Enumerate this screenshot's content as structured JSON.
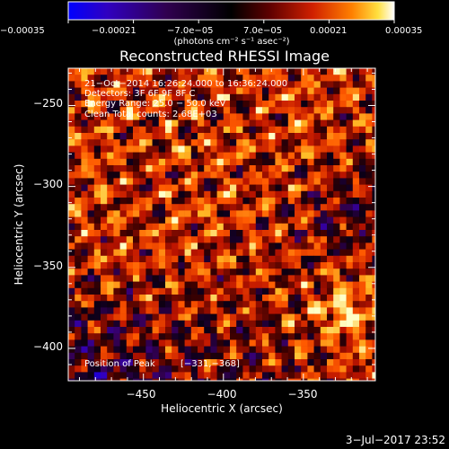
{
  "chart_data": {
    "type": "heatmap",
    "title": "Reconstructed RHESSI Image",
    "xlabel": "Heliocentric X (arcsec)",
    "ylabel": "Heliocentric Y (arcsec)",
    "xlim": [
      -497,
      -305
    ],
    "ylim": [
      -420,
      -227
    ],
    "x_ticks": [
      {
        "value": -450,
        "label": "−450"
      },
      {
        "value": -400,
        "label": "−400"
      },
      {
        "value": -350,
        "label": "−350"
      }
    ],
    "y_ticks": [
      {
        "value": -250,
        "label": "−250"
      },
      {
        "value": -300,
        "label": "−300"
      },
      {
        "value": -350,
        "label": "−350"
      },
      {
        "value": -400,
        "label": "−400"
      }
    ],
    "colorbar": {
      "range": [
        -0.00035,
        0.00035
      ],
      "tick_labels": [
        "−0.00035",
        "−0.00021",
        "−7.0e−05",
        "7.0e−05",
        "0.00021",
        "0.00035"
      ],
      "tick_values": [
        -0.00035,
        -0.00021,
        -7e-05,
        7e-05,
        0.00021,
        0.00035
      ],
      "unit_label": "(photons cm⁻² s⁻¹ asec⁻²)",
      "colors": [
        "#0000ff",
        "#4000a0",
        "#200030",
        "#000000",
        "#500000",
        "#b01000",
        "#ff5000",
        "#ffb020",
        "#ffff80",
        "#ffffff"
      ]
    },
    "annotations": [
      "21−Oct−2014 16:26:24.000 to 16:36:24.000",
      "Detectors: 3F 6F 9F 8F  C",
      "Energy Range: 25.0 − 50.0 keV",
      "Clean     Total counts: 2.68E+03"
    ],
    "peak": {
      "label": "Position of Peak",
      "value": "[−331,−368]",
      "x": -331,
      "y": -368
    },
    "grid": false
  },
  "footer": {
    "date": "3−Jul−2017 23:52"
  }
}
